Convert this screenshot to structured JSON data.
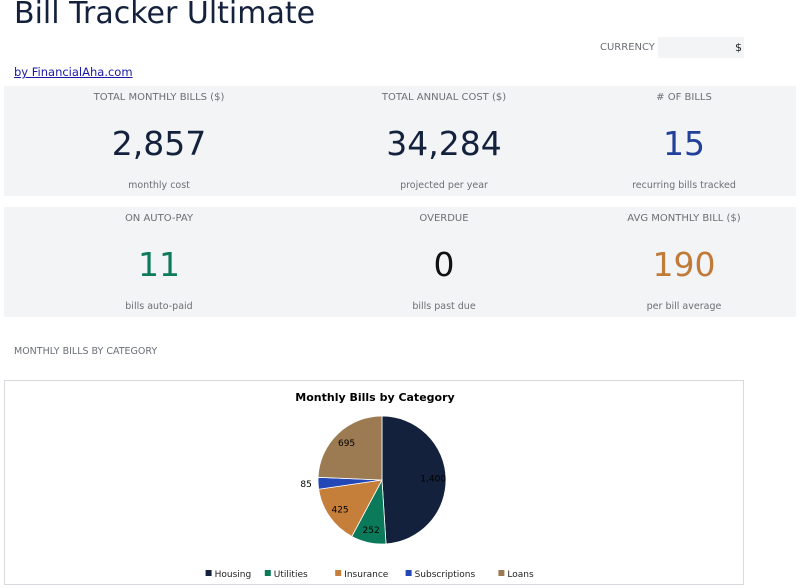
{
  "page": {
    "title": "Bill Tracker Ultimate",
    "byline": "by FinancialAha.com",
    "currency_label": "CURRENCY",
    "currency_value": "$"
  },
  "metrics": [
    {
      "label": "TOTAL MONTHLY BILLS ($)",
      "value": "2,857",
      "sub": "monthly cost",
      "color": "#14213d"
    },
    {
      "label": "TOTAL ANNUAL COST ($)",
      "value": "34,284",
      "sub": "projected per year",
      "color": "#14213d"
    },
    {
      "label": "# OF BILLS",
      "value": "15",
      "sub": "recurring bills tracked",
      "color": "#23409a"
    },
    {
      "label": "ON AUTO-PAY",
      "value": "11",
      "sub": "bills auto-paid",
      "color": "#0e7a5c"
    },
    {
      "label": "OVERDUE",
      "value": "0",
      "sub": "bills past due",
      "color": "#111111"
    },
    {
      "label": "AVG MONTHLY BILL ($)",
      "value": "190",
      "sub": "per bill average",
      "color": "#c07a3a"
    }
  ],
  "section": {
    "label": "MONTHLY BILLS BY CATEGORY"
  },
  "chart_data": {
    "type": "pie",
    "title": "Monthly Bills by Category",
    "categories": [
      "Housing",
      "Utilities",
      "Insurance",
      "Subscriptions",
      "Loans"
    ],
    "values": [
      1400,
      252,
      425,
      85,
      695
    ],
    "value_labels": [
      "1,400",
      "252",
      "425",
      "85",
      "695"
    ],
    "colors": [
      "#14213d",
      "#0b7a5a",
      "#c57f3b",
      "#2447b8",
      "#9c7b52"
    ],
    "legend": "bottom"
  }
}
